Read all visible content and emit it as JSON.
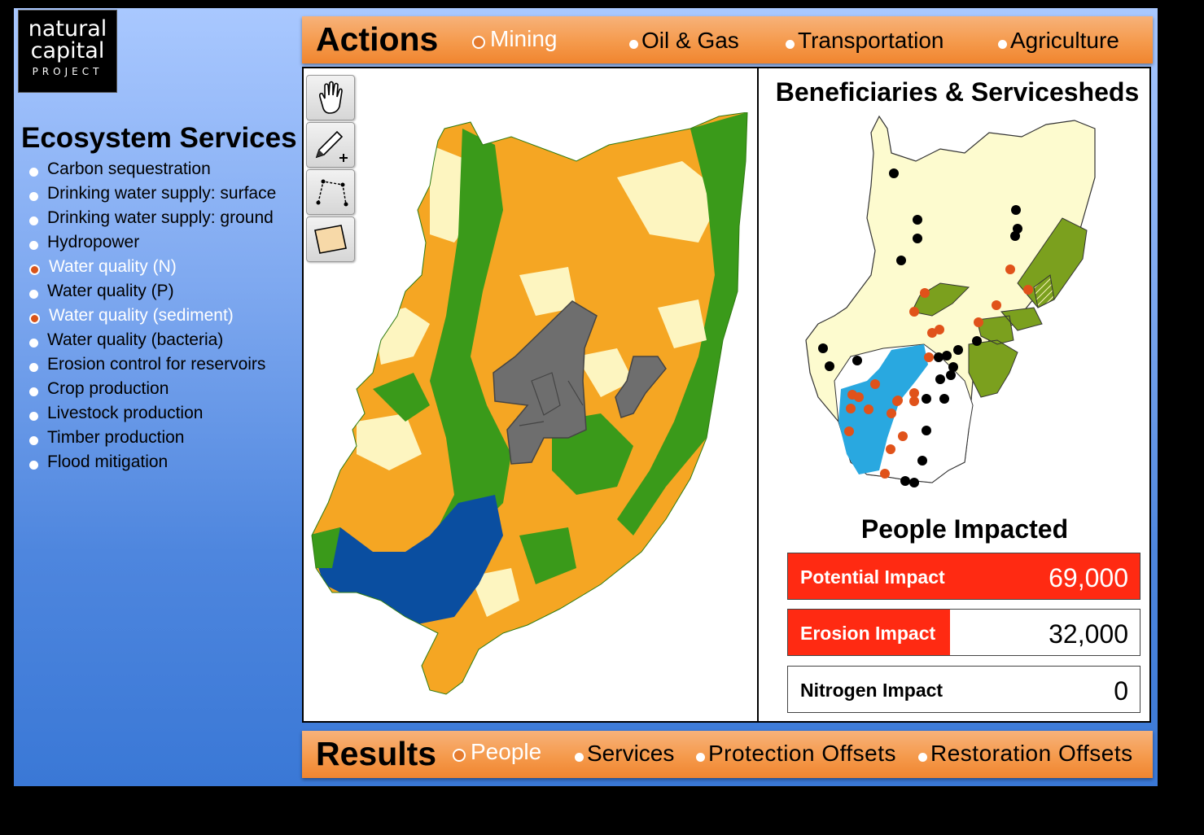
{
  "logo": {
    "line1": "natural",
    "line2": "capital",
    "line3": "PROJECT"
  },
  "ecosystem": {
    "title": "Ecosystem Services",
    "items": [
      {
        "label": "Carbon sequestration",
        "selected": false
      },
      {
        "label": "Drinking water supply: surface",
        "selected": false
      },
      {
        "label": "Drinking water supply: ground",
        "selected": false
      },
      {
        "label": "Hydropower",
        "selected": false
      },
      {
        "label": "Water quality (N)",
        "selected": true
      },
      {
        "label": "Water quality (P)",
        "selected": false
      },
      {
        "label": "Water quality (sediment)",
        "selected": true
      },
      {
        "label": "Water quality (bacteria)",
        "selected": false
      },
      {
        "label": "Erosion control for reservoirs",
        "selected": false
      },
      {
        "label": "Crop production",
        "selected": false
      },
      {
        "label": "Livestock production",
        "selected": false
      },
      {
        "label": "Timber production",
        "selected": false
      },
      {
        "label": "Flood mitigation",
        "selected": false
      }
    ]
  },
  "actions": {
    "title": "Actions",
    "options": [
      {
        "label": "Mining",
        "selected": true
      },
      {
        "label": "Oil & Gas",
        "selected": false
      },
      {
        "label": "Transportation",
        "selected": false
      },
      {
        "label": "Agriculture",
        "selected": false
      }
    ]
  },
  "tools": [
    {
      "name": "pan-tool-icon"
    },
    {
      "name": "draw-point-icon"
    },
    {
      "name": "draw-line-icon"
    },
    {
      "name": "draw-polygon-icon"
    }
  ],
  "beneficiaries": {
    "title": "Beneficiaries & Servicesheds"
  },
  "people_impacted": {
    "title": "People Impacted",
    "potential": {
      "label": "Potential Impact",
      "value": "69,000"
    },
    "erosion": {
      "label": "Erosion Impact",
      "value": "32,000",
      "fraction": 0.46
    },
    "nitrogen": {
      "label": "Nitrogen Impact",
      "value": "0"
    }
  },
  "results": {
    "title": "Results",
    "options": [
      {
        "label": "People",
        "selected": true
      },
      {
        "label": "Services",
        "selected": false
      },
      {
        "label": "Protection Offsets",
        "selected": false
      },
      {
        "label": "Restoration Offsets",
        "selected": false
      }
    ]
  },
  "colors": {
    "accent_orange": "#f59a4c",
    "impact_red": "#ff2a12",
    "selected_dot": "#d9541a",
    "map_crop": "#f5a623",
    "map_forest": "#3a9a1a",
    "map_water": "#0a4ea0",
    "map_pasture": "#fdf5c0",
    "mine_gray": "#6e6e6e"
  }
}
